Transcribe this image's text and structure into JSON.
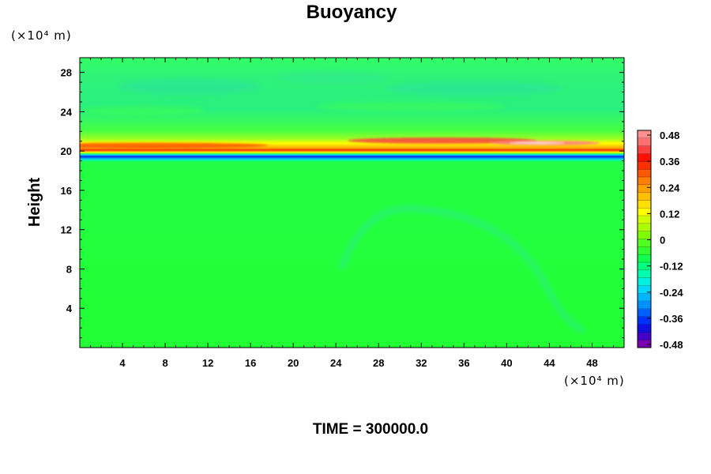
{
  "chart_data": {
    "type": "heatmap",
    "title": "Buoyancy",
    "ylabel": "Height",
    "y_unit": "(×10⁴ m)",
    "x_unit": "(×10⁴ m)",
    "time_label": "TIME = 300000.0",
    "xlim": [
      0,
      51
    ],
    "ylim": [
      0,
      29.5
    ],
    "x_ticks": [
      "4",
      "8",
      "12",
      "16",
      "20",
      "24",
      "28",
      "32",
      "36",
      "40",
      "44",
      "48"
    ],
    "y_ticks": [
      "4",
      "8",
      "12",
      "16",
      "20",
      "24",
      "28"
    ],
    "colorbar": {
      "range": [
        -0.48,
        0.48
      ],
      "tick_labels": [
        "0.48",
        "0.36",
        "0.24",
        "0.12",
        "0",
        "-0.12",
        "-0.24",
        "-0.36",
        "-0.48"
      ]
    },
    "field_features": [
      {
        "feature": "background",
        "value": 0.0
      },
      {
        "feature": "negative band",
        "height": 20.3,
        "value": -0.35
      },
      {
        "feature": "positive band",
        "height": 21.0,
        "value": 0.36,
        "max_value": 0.48,
        "max_near_x": [
          34,
          48
        ]
      },
      {
        "feature": "weak positive layer",
        "height_range": [
          21.5,
          23.5
        ],
        "value": 0.1
      },
      {
        "feature": "weak negative upper layer",
        "height_range": [
          24,
          29
        ],
        "value": -0.05
      },
      {
        "feature": "weak negative arc",
        "x_range": [
          24,
          47
        ],
        "peak_height": 13.8,
        "value": -0.04
      }
    ]
  }
}
